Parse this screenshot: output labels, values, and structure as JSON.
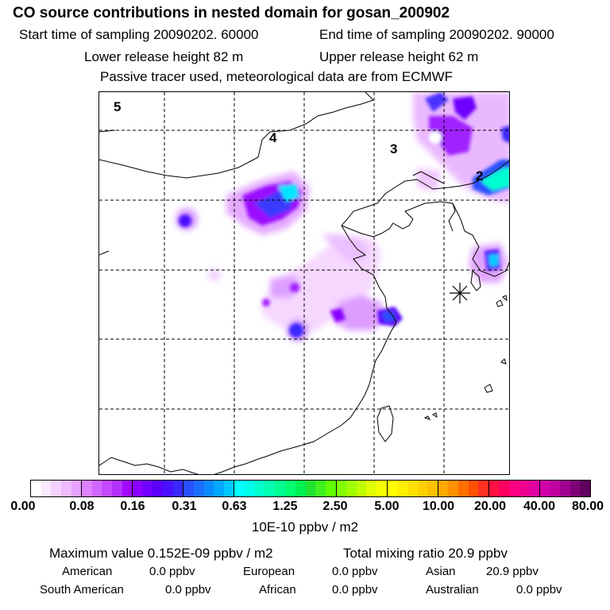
{
  "header": {
    "title": "CO  source contributions in nested domain for gosan_200902",
    "start_time": "Start time of sampling 20090202. 60000",
    "end_time": "End time of sampling 20090202. 90000",
    "lower_release": "Lower release height   82 m",
    "upper_release": "Upper release height   62 m",
    "tracer_note": "Passive tracer used, meteorological data are from ECMWF"
  },
  "map": {
    "region_labels": [
      "5",
      "4",
      "3",
      "2"
    ],
    "receptor_symbol": "*"
  },
  "colorbar": {
    "tick_labels": [
      "0.00",
      "0.08",
      "0.16",
      "0.31",
      "0.63",
      "1.25",
      "2.50",
      "5.00",
      "10.00",
      "20.00",
      "40.00",
      "80.00"
    ],
    "unit": "10E-10 ppbv / m2",
    "colors": [
      [
        "#ffffff",
        "#fbe9ff",
        "#f4d2ff",
        "#eebbff",
        "#e6a2ff"
      ],
      [
        "#dc82ff",
        "#d066ff",
        "#c34aff",
        "#b231ff",
        "#a20aff"
      ],
      [
        "#8a00ff",
        "#7000ff",
        "#5a00ff",
        "#4b10ff",
        "#3a28ff"
      ],
      [
        "#2a50ff",
        "#1a6dff",
        "#0a8aff",
        "#00a6ff",
        "#00c6ff"
      ],
      [
        "#00ffff",
        "#00ffe8",
        "#00ffcc",
        "#00ffb0",
        "#00ff90"
      ],
      [
        "#00ff70",
        "#00f050",
        "#20e030",
        "#40f020",
        "#60ff00"
      ],
      [
        "#80ff00",
        "#a0ff00",
        "#c0ff00",
        "#e0ff00",
        "#f8ff00"
      ],
      [
        "#ffff00",
        "#fff000",
        "#ffe000",
        "#ffd000",
        "#ffc000"
      ],
      [
        "#ffa800",
        "#ff9000",
        "#ff7000",
        "#ff5000",
        "#ff3020"
      ],
      [
        "#ff1040",
        "#ff0060",
        "#ff0080",
        "#f00090",
        "#e000a0"
      ],
      [
        "#d000a8",
        "#c000a0",
        "#a00090",
        "#800078",
        "#600060"
      ]
    ]
  },
  "stats": {
    "max_value": "Maximum value  0.152E-09 ppbv / m2",
    "total_mixing": "Total mixing ratio       20.9 ppbv",
    "regions": [
      {
        "name": "American",
        "value": "0.0 ppbv"
      },
      {
        "name": "European",
        "value": "0.0 ppbv"
      },
      {
        "name": "Asian",
        "value": "20.9 ppbv"
      },
      {
        "name": "South American",
        "value": "0.0 ppbv"
      },
      {
        "name": "African",
        "value": "0.0 ppbv"
      },
      {
        "name": "Australian",
        "value": "0.0 ppbv"
      }
    ]
  }
}
